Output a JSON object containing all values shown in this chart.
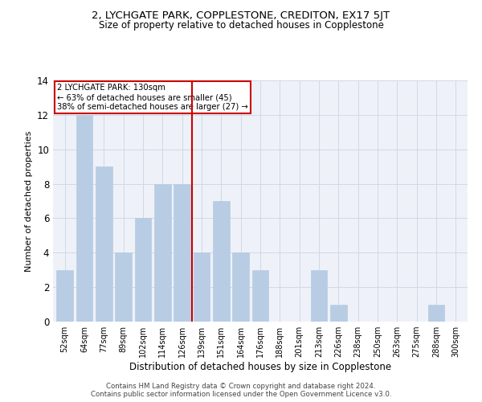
{
  "title": "2, LYCHGATE PARK, COPPLESTONE, CREDITON, EX17 5JT",
  "subtitle": "Size of property relative to detached houses in Copplestone",
  "xlabel": "Distribution of detached houses by size in Copplestone",
  "ylabel": "Number of detached properties",
  "bar_labels": [
    "52sqm",
    "64sqm",
    "77sqm",
    "89sqm",
    "102sqm",
    "114sqm",
    "126sqm",
    "139sqm",
    "151sqm",
    "164sqm",
    "176sqm",
    "188sqm",
    "201sqm",
    "213sqm",
    "226sqm",
    "238sqm",
    "250sqm",
    "263sqm",
    "275sqm",
    "288sqm",
    "300sqm"
  ],
  "bar_values": [
    3,
    12,
    9,
    4,
    6,
    8,
    8,
    4,
    7,
    4,
    3,
    0,
    0,
    3,
    1,
    0,
    0,
    0,
    0,
    1,
    0
  ],
  "bar_color": "#b8cce4",
  "bar_edge_color": "#b8cce4",
  "reference_line_x": 6.5,
  "reference_line_label": "2 LYCHGATE PARK: 130sqm",
  "annotation_line1": "← 63% of detached houses are smaller (45)",
  "annotation_line2": "38% of semi-detached houses are larger (27) →",
  "annotation_box_color": "#ffffff",
  "annotation_box_edge_color": "#cc0000",
  "ref_line_color": "#cc0000",
  "grid_color": "#d0d8e8",
  "bg_color": "#eef2f8",
  "ylim": [
    0,
    14
  ],
  "yticks": [
    0,
    2,
    4,
    6,
    8,
    10,
    12,
    14
  ],
  "footer_line1": "Contains HM Land Registry data © Crown copyright and database right 2024.",
  "footer_line2": "Contains public sector information licensed under the Open Government Licence v3.0."
}
